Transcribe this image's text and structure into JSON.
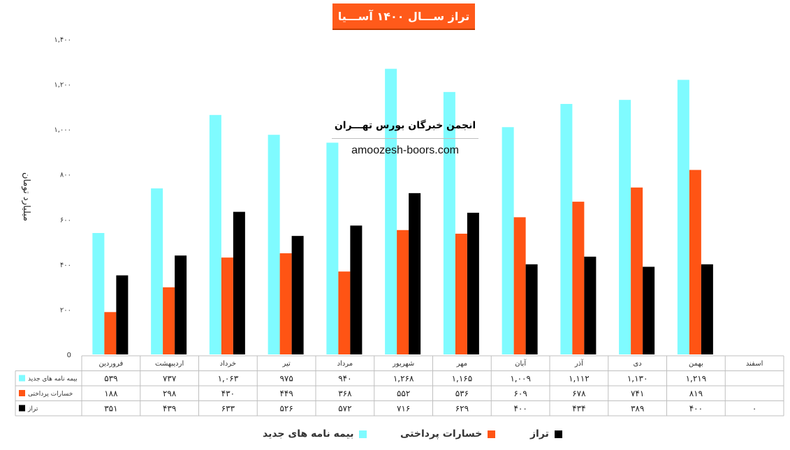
{
  "title": "تراز ســـال ۱۴۰۰ آســـیا",
  "watermark": {
    "line1": "انجمن خبرگان بورس تهـــران",
    "line2": "amoozesh-boors.com"
  },
  "colors": {
    "new_premiums": "#7ffbff",
    "claims_paid": "#ff5414",
    "balance": "#000000",
    "title_bg": "#ff5a1a"
  },
  "chart_data": {
    "type": "bar",
    "title": "تراز ســـال ۱۴۰۰ آســـیا",
    "ylabel": "میلیارد تومان",
    "xlabel": "",
    "ylim": [
      0,
      1400
    ],
    "yticks": [
      0,
      200,
      400,
      600,
      800,
      1000,
      1200,
      1400
    ],
    "ytick_labels": [
      "0",
      "۲۰۰",
      "۴۰۰",
      "۶۰۰",
      "۸۰۰",
      "۱,۰۰۰",
      "۱,۲۰۰",
      "۱,۴۰۰"
    ],
    "grid": false,
    "legend_position": "bottom",
    "categories": [
      "فروردین",
      "اردیبهشت",
      "خرداد",
      "تیر",
      "مرداد",
      "شهریور",
      "مهر",
      "آبان",
      "آذر",
      "دی",
      "بهمن",
      "اسفند"
    ],
    "series": [
      {
        "name": "بیمه نامه های جدید",
        "color_key": "new_premiums",
        "values": [
          539,
          737,
          1063,
          975,
          940,
          1268,
          1165,
          1009,
          1112,
          1130,
          1219,
          null
        ],
        "labels": [
          "۵۳۹",
          "۷۳۷",
          "۱,۰۶۳",
          "۹۷۵",
          "۹۴۰",
          "۱,۲۶۸",
          "۱,۱۶۵",
          "۱,۰۰۹",
          "۱,۱۱۲",
          "۱,۱۳۰",
          "۱,۲۱۹",
          ""
        ]
      },
      {
        "name": "خسارات پرداختی",
        "color_key": "claims_paid",
        "values": [
          188,
          298,
          430,
          449,
          368,
          552,
          536,
          609,
          678,
          741,
          819,
          null
        ],
        "labels": [
          "۱۸۸",
          "۲۹۸",
          "۴۳۰",
          "۴۴۹",
          "۳۶۸",
          "۵۵۲",
          "۵۳۶",
          "۶۰۹",
          "۶۷۸",
          "۷۴۱",
          "۸۱۹",
          ""
        ]
      },
      {
        "name": "تراز",
        "color_key": "balance",
        "values": [
          351,
          439,
          633,
          526,
          572,
          716,
          629,
          400,
          434,
          389,
          400,
          0
        ],
        "labels": [
          "۳۵۱",
          "۴۳۹",
          "۶۳۳",
          "۵۲۶",
          "۵۷۲",
          "۷۱۶",
          "۶۲۹",
          "۴۰۰",
          "۴۳۴",
          "۳۸۹",
          "۴۰۰",
          "۰"
        ]
      }
    ]
  }
}
